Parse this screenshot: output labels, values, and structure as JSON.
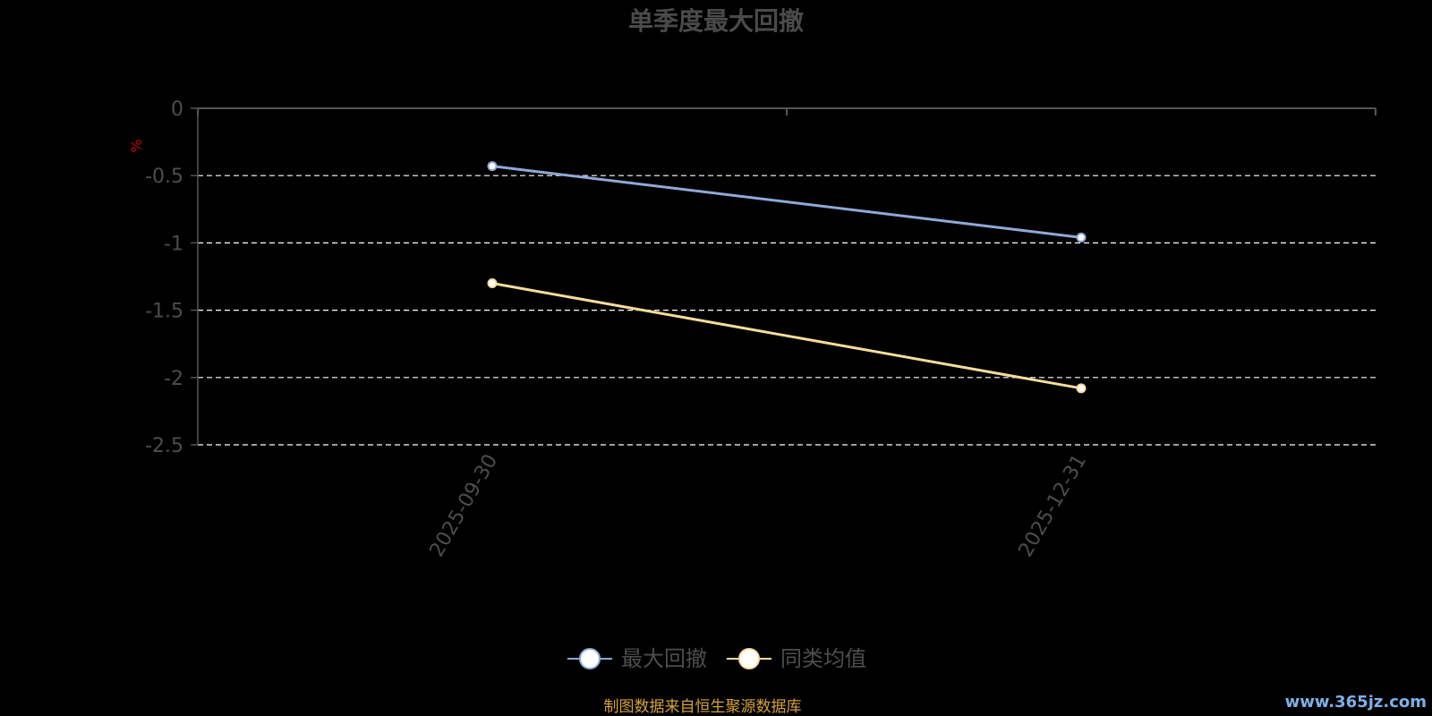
{
  "chart_data": {
    "type": "line",
    "title": "单季度最大回撤",
    "ylabel": "%",
    "categories": [
      "2025-09-30",
      "2025-12-31"
    ],
    "ylim": [
      -2.5,
      0
    ],
    "yticks": [
      "0",
      "-0.5",
      "-1",
      "-1.5",
      "-2",
      "-2.5"
    ],
    "ytick_values": [
      0,
      -0.5,
      -1,
      -1.5,
      -2,
      -2.5
    ],
    "grid": true,
    "legend_position": "bottom-center",
    "series": [
      {
        "name": "最大回撤",
        "values": [
          -0.43,
          -0.96
        ],
        "color": "#8fa9d8"
      },
      {
        "name": "同类均值",
        "values": [
          -1.3,
          -2.08
        ],
        "color": "#f7dc9b"
      }
    ]
  },
  "footer": {
    "source": "制图数据来自恒生聚源数据库",
    "source_color": "#d4a23a",
    "watermark": "www.365jz.com",
    "watermark_color": "#7fb0e8"
  },
  "colors": {
    "axis": "#555555",
    "grid": "#ffffff",
    "unit": "#cc0000"
  }
}
